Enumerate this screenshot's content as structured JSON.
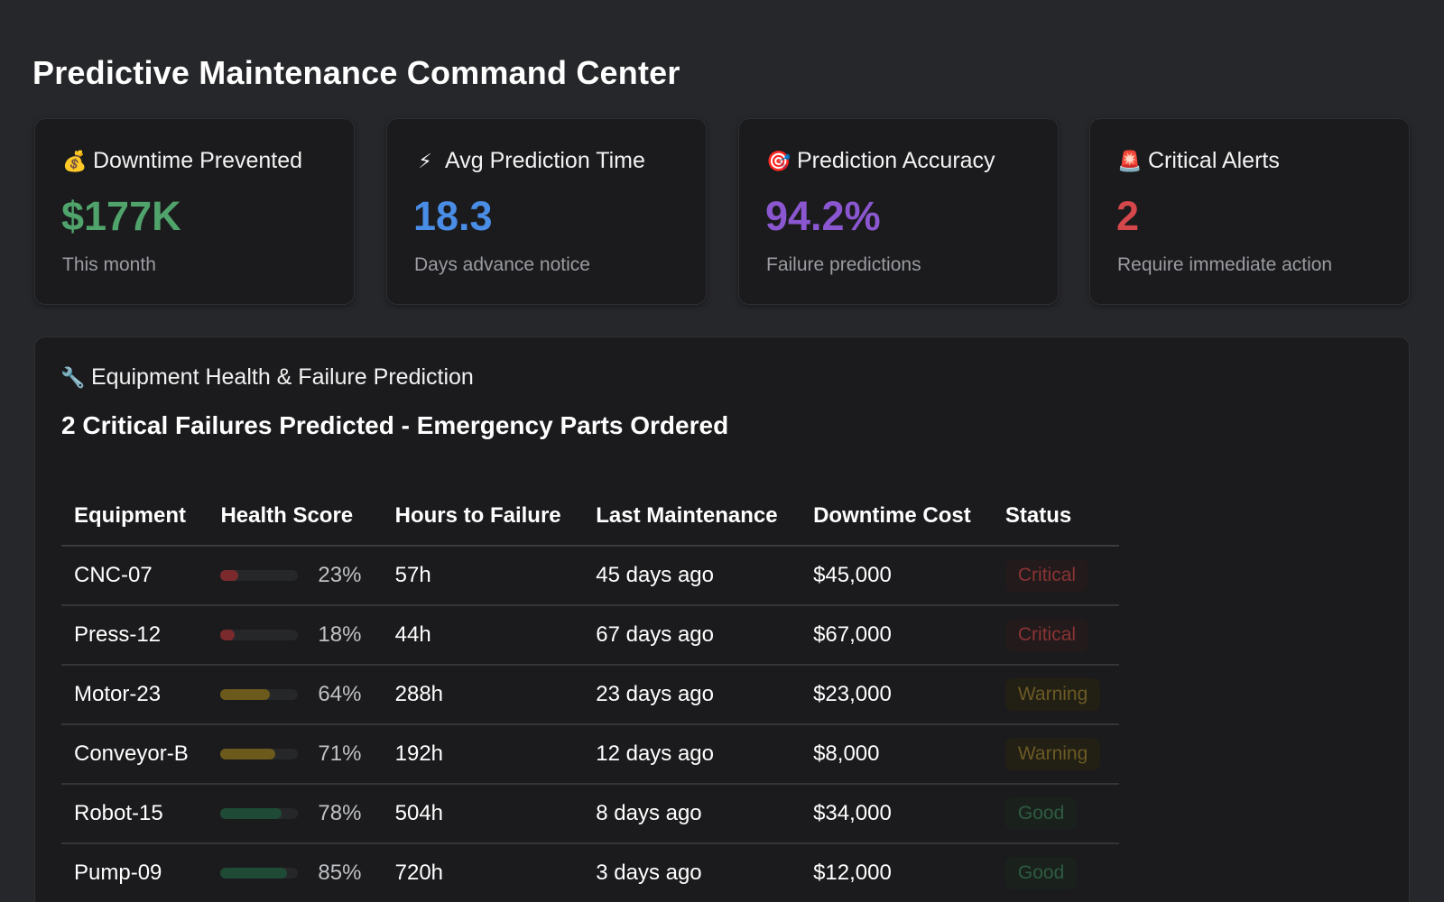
{
  "page": {
    "title": "Predictive Maintenance Command Center"
  },
  "kpis": [
    {
      "icon": "money-bag-icon",
      "glyph": "💰",
      "label": "Downtime Prevented",
      "value": "$177K",
      "sub": "This month",
      "color": "#4fa36b"
    },
    {
      "icon": "lightning-icon",
      "glyph": "⚡",
      "label": "Avg Prediction Time",
      "value": "18.3",
      "sub": "Days advance notice",
      "color": "#4a8de6"
    },
    {
      "icon": "target-icon",
      "glyph": "🎯",
      "label": "Prediction Accuracy",
      "value": "94.2%",
      "sub": "Failure predictions",
      "color": "#8b57d1"
    },
    {
      "icon": "siren-icon",
      "glyph": "🚨",
      "label": "Critical Alerts",
      "value": "2",
      "sub": "Require immediate action",
      "color": "#d4474a"
    }
  ],
  "panel": {
    "icon": "wrench-icon",
    "glyph": "🔧",
    "title": "Equipment Health & Failure Prediction",
    "subtitle": "2 Critical Failures Predicted - Emergency Parts Ordered",
    "columns": [
      "Equipment",
      "Health Score",
      "Hours to Failure",
      "Last Maintenance",
      "Downtime Cost",
      "Status"
    ],
    "rows": [
      {
        "equipment": "CNC-07",
        "health": 23,
        "health_label": "23%",
        "hours": "57h",
        "last": "45 days ago",
        "cost": "$45,000",
        "status": "Critical",
        "level": "critical"
      },
      {
        "equipment": "Press-12",
        "health": 18,
        "health_label": "18%",
        "hours": "44h",
        "last": "67 days ago",
        "cost": "$67,000",
        "status": "Critical",
        "level": "critical"
      },
      {
        "equipment": "Motor-23",
        "health": 64,
        "health_label": "64%",
        "hours": "288h",
        "last": "23 days ago",
        "cost": "$23,000",
        "status": "Warning",
        "level": "warning"
      },
      {
        "equipment": "Conveyor-B",
        "health": 71,
        "health_label": "71%",
        "hours": "192h",
        "last": "12 days ago",
        "cost": "$8,000",
        "status": "Warning",
        "level": "warning"
      },
      {
        "equipment": "Robot-15",
        "health": 78,
        "health_label": "78%",
        "hours": "504h",
        "last": "8 days ago",
        "cost": "$34,000",
        "status": "Good",
        "level": "good"
      },
      {
        "equipment": "Pump-09",
        "health": 85,
        "health_label": "85%",
        "hours": "720h",
        "last": "3 days ago",
        "cost": "$12,000",
        "status": "Good",
        "level": "good"
      }
    ]
  },
  "colors": {
    "critical": "#7a2a2d",
    "warning": "#6b5a1c",
    "good": "#1f4a35"
  }
}
